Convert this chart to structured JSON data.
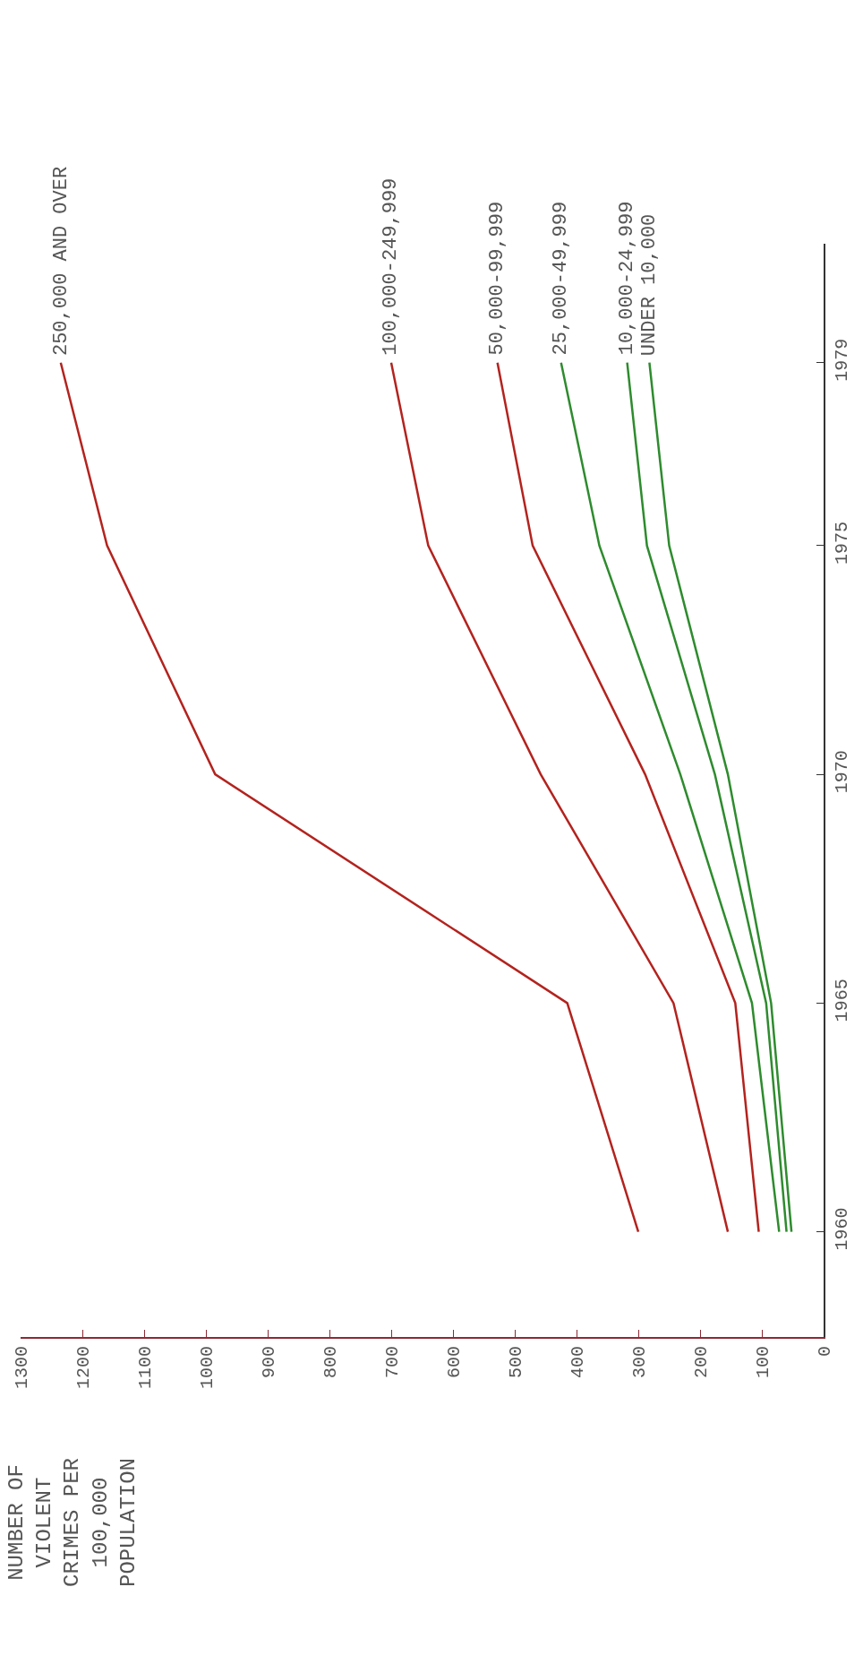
{
  "chart_data": {
    "type": "line",
    "orientation": "horizontal",
    "ylabel": "NUMBER OF\nVIOLENT\nCRIMES PER\n100,000\nPOPULATION",
    "x": [
      1960,
      1965,
      1970,
      1975,
      1979
    ],
    "series": [
      {
        "name": "250,000 AND OVER",
        "color": "#b3231e",
        "values": [
          300,
          415,
          985,
          1160,
          1235
        ]
      },
      {
        "name": "100,000-249,999",
        "color": "#b3231e",
        "values": [
          155,
          243,
          458,
          640,
          700
        ]
      },
      {
        "name": "50,000-99,999",
        "color": "#b3231e",
        "values": [
          105,
          143,
          289,
          471,
          528
        ]
      },
      {
        "name": "25,000-49,999",
        "color": "#2e8b2e",
        "values": [
          72,
          116,
          232,
          363,
          425
        ]
      },
      {
        "name": "10,000-24,999",
        "color": "#2e8b2e",
        "values": [
          60,
          93,
          176,
          286,
          318
        ]
      },
      {
        "name": "UNDER 10,000",
        "color": "#2e8b2e",
        "values": [
          52,
          85,
          155,
          250,
          282
        ]
      }
    ],
    "xlim": [
      1300,
      0
    ],
    "xticks": [
      1300,
      1200,
      1100,
      1000,
      900,
      800,
      700,
      600,
      500,
      400,
      300,
      200,
      100,
      0
    ],
    "ylim": [
      1957.7,
      1981.6
    ],
    "yticks": [
      1960,
      1965,
      1970,
      1975,
      1979
    ],
    "marker": "none",
    "line_style": "solid"
  }
}
